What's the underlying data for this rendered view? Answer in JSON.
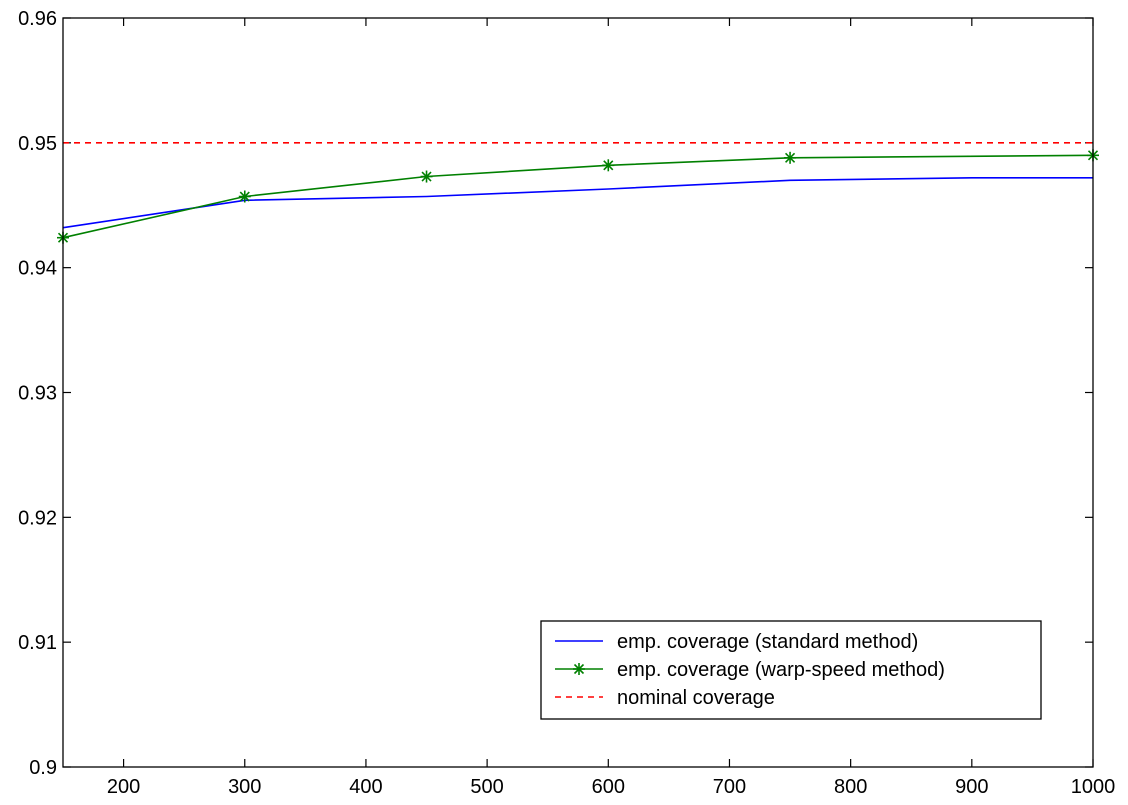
{
  "chart_data": {
    "type": "line",
    "title": "",
    "xlabel": "",
    "ylabel": "",
    "xlim": [
      150,
      1000
    ],
    "ylim": [
      0.9,
      0.96
    ],
    "xticks": [
      200,
      300,
      400,
      500,
      600,
      700,
      800,
      900,
      1000
    ],
    "xtick_labels": [
      "200",
      "300",
      "400",
      "500",
      "600",
      "700",
      "800",
      "900",
      "1000"
    ],
    "yticks": [
      0.9,
      0.91,
      0.92,
      0.93,
      0.94,
      0.95,
      0.96
    ],
    "ytick_labels": [
      "0.9",
      "0.91",
      "0.92",
      "0.93",
      "0.94",
      "0.95",
      "0.96"
    ],
    "grid": false,
    "legend_position": "bottom-right",
    "series": [
      {
        "name": "emp. coverage (standard method)",
        "color": "#0000ff",
        "line_style": "solid",
        "marker": "none",
        "x": [
          150,
          300,
          450,
          600,
          750,
          900,
          1000
        ],
        "y": [
          0.9432,
          0.9454,
          0.9457,
          0.9463,
          0.947,
          0.9472,
          0.9472
        ]
      },
      {
        "name": "emp. coverage (warp-speed method)",
        "color": "#008000",
        "line_style": "solid",
        "marker": "star",
        "x": [
          150,
          300,
          450,
          600,
          750,
          1000
        ],
        "y": [
          0.9424,
          0.9457,
          0.9473,
          0.9482,
          0.9488,
          0.949
        ]
      },
      {
        "name": "nominal coverage",
        "color": "#ff0000",
        "line_style": "dashed",
        "marker": "none",
        "x": [
          150,
          1000
        ],
        "y": [
          0.95,
          0.95
        ]
      }
    ]
  }
}
